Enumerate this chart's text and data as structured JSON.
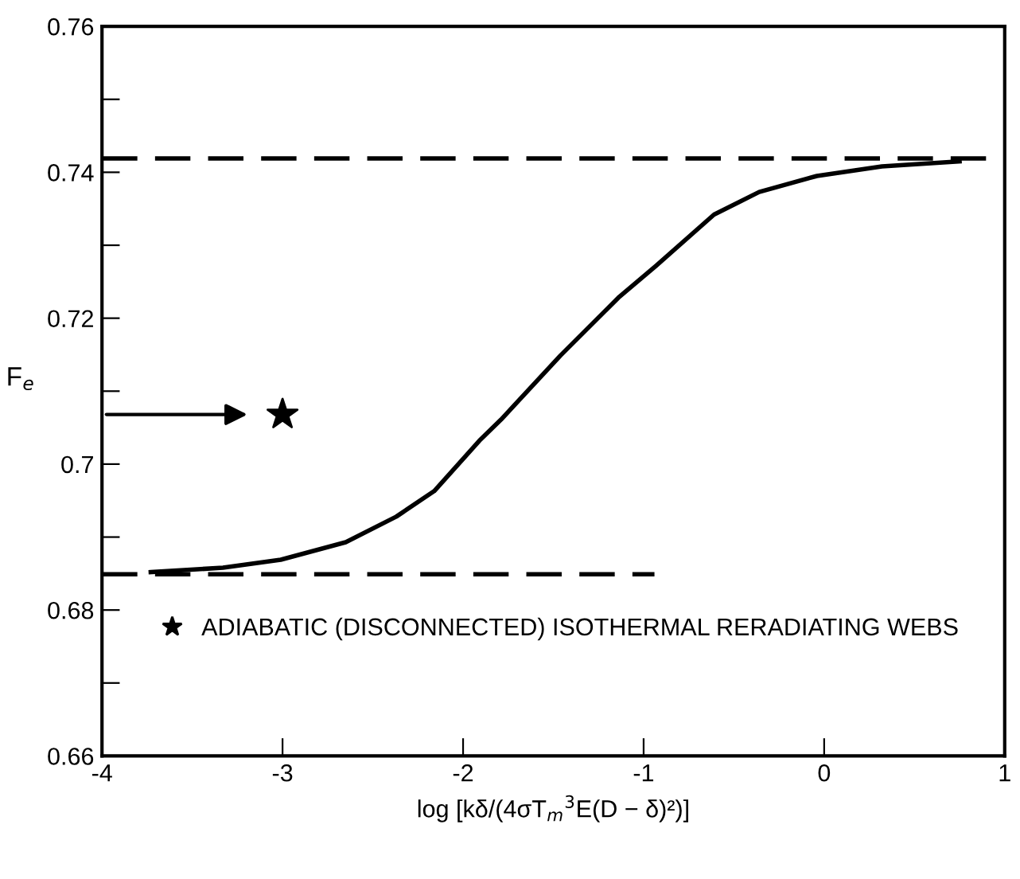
{
  "chart_data": {
    "type": "line",
    "xlabel": "log [kδ/(4σT$_{m}$$^{3}$E(D − δ)²)]",
    "ylabel": "F$_{e}$",
    "xlim": [
      -4,
      1
    ],
    "ylim": [
      0.66,
      0.76
    ],
    "xticks": [
      -4,
      -3,
      -2,
      -1,
      0,
      1
    ],
    "yticks": [
      0.66,
      {
        "value": 0.67,
        "label": null
      },
      0.68,
      {
        "value": 0.69,
        "label": null
      },
      0.7,
      {
        "value": 0.71,
        "label": null
      },
      0.72,
      {
        "value": 0.73,
        "label": null
      },
      0.74,
      {
        "value": 0.75,
        "label": null
      },
      0.76
    ],
    "grid": false,
    "legend": "bottom",
    "marker": "none",
    "series": [
      {
        "color": "#000000",
        "x": [
          -3.73,
          -3.33,
          -3.01,
          -2.65,
          -2.37,
          -2.16,
          -1.91,
          -1.79,
          -1.46,
          -1.14,
          -0.93,
          -0.61,
          -0.36,
          -0.04,
          0.32,
          0.75
        ],
        "values": [
          0.6852,
          0.6858,
          0.6869,
          0.6893,
          0.6928,
          0.6963,
          0.7032,
          0.7061,
          0.7149,
          0.7228,
          0.7272,
          0.7342,
          0.7373,
          0.7395,
          0.7408,
          0.7415
        ]
      },
      {
        "color": "#000000",
        "line_style": "dashed",
        "x": [
          -4,
          1
        ],
        "values": [
          0.7419,
          0.7419
        ]
      },
      {
        "color": "#000000",
        "line_style": "dashed",
        "x": [
          -4,
          -0.94
        ],
        "values": [
          0.6849,
          0.6849
        ]
      },
      {
        "type": "scatter",
        "marker": "star",
        "name": "ADIABATIC (DISCONNECTED) ISOTHERMAL RERADIATING WEBS",
        "color": "#000000",
        "x": [
          -3.0
        ],
        "values": [
          0.7068
        ]
      }
    ]
  }
}
